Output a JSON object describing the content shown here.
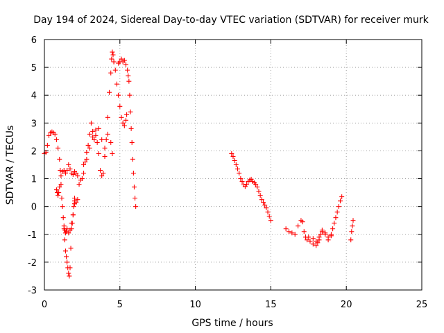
{
  "chart_data": {
    "type": "scatter",
    "title": "Day 194 of 2024, Sidereal Day-to-day VTEC variation (SDTVAR) for receiver murk",
    "xlabel": "GPS time / hours",
    "ylabel": "SDTVAR / TECUs",
    "xlim": [
      0,
      25
    ],
    "ylim": [
      -3,
      6
    ],
    "xticks": [
      0,
      5,
      10,
      15,
      20,
      25
    ],
    "yticks": [
      -3,
      -2,
      -1,
      0,
      1,
      2,
      3,
      4,
      5,
      6
    ],
    "xtick_labels": [
      "0",
      "5",
      "10",
      "15",
      "20",
      "25"
    ],
    "ytick_labels": [
      "-3",
      "-2",
      "-1",
      "0",
      "1",
      "2",
      "3",
      "4",
      "5",
      "6"
    ],
    "grid": true,
    "marker": "plus",
    "color": "#ff0000",
    "series": [
      {
        "name": "arc-early-oscillating",
        "x": [
          0.0,
          0.1,
          0.2,
          0.3,
          0.4,
          0.5,
          0.6,
          0.7,
          0.8,
          0.9,
          1.0,
          1.05,
          1.1,
          1.15,
          1.2,
          1.25,
          1.3,
          1.35,
          1.4,
          1.45,
          1.5,
          1.55,
          1.6,
          1.65,
          1.7,
          1.75,
          1.8,
          1.85,
          1.9,
          1.95,
          2.0
        ],
        "y": [
          1.9,
          1.95,
          2.2,
          2.55,
          2.65,
          2.68,
          2.65,
          2.6,
          2.4,
          2.1,
          1.7,
          1.3,
          0.8,
          0.3,
          0.0,
          -0.4,
          -0.8,
          -1.2,
          -1.6,
          -1.8,
          -2.0,
          -2.2,
          -2.4,
          -2.5,
          -2.2,
          -1.5,
          -0.8,
          -0.6,
          -0.3,
          0.0,
          0.2
        ]
      },
      {
        "name": "arc-upper-branch",
        "x": [
          0.8,
          0.85,
          0.9,
          0.95,
          1.0,
          1.1,
          1.2,
          1.3,
          1.4,
          1.5,
          1.6,
          1.7,
          1.8,
          1.9,
          2.0,
          2.1,
          2.2
        ],
        "y": [
          0.6,
          0.5,
          0.4,
          0.5,
          0.7,
          1.1,
          1.25,
          1.3,
          1.2,
          1.3,
          1.5,
          1.35,
          1.2,
          1.15,
          1.25,
          1.2,
          1.1
        ]
      },
      {
        "name": "arc-lower-branch",
        "x": [
          1.3,
          1.35,
          1.4,
          1.45,
          1.5,
          1.6,
          1.7,
          1.8,
          1.9,
          2.0
        ],
        "y": [
          -0.7,
          -0.85,
          -0.95,
          -0.9,
          -0.8,
          -0.95,
          -0.85,
          -0.6,
          -0.3,
          0.1
        ]
      },
      {
        "name": "arc-rising-peak",
        "x": [
          2.0,
          2.1,
          2.2,
          2.3,
          2.4,
          2.5,
          2.6,
          2.7,
          2.8,
          2.9,
          3.0,
          3.1,
          3.2,
          3.3,
          3.4,
          3.5,
          3.6,
          3.7,
          3.8,
          3.9,
          4.0,
          4.1,
          4.2,
          4.3,
          4.4,
          4.45,
          4.5,
          4.55,
          4.6
        ],
        "y": [
          0.3,
          0.15,
          0.25,
          0.8,
          0.95,
          1.0,
          1.2,
          1.6,
          1.95,
          2.2,
          2.6,
          3.0,
          2.7,
          2.4,
          2.55,
          2.3,
          1.9,
          1.3,
          1.1,
          1.2,
          1.8,
          2.4,
          3.2,
          4.1,
          4.8,
          5.3,
          5.55,
          5.45,
          5.2
        ]
      },
      {
        "name": "arc-mid-dense",
        "x": [
          2.6,
          2.8,
          3.0,
          3.2,
          3.4,
          3.6,
          3.8,
          4.0,
          4.2,
          4.4,
          4.5
        ],
        "y": [
          1.5,
          1.7,
          2.1,
          2.5,
          2.75,
          2.8,
          2.4,
          2.1,
          2.6,
          2.3,
          1.9
        ]
      },
      {
        "name": "arc-second-peak",
        "x": [
          4.6,
          4.7,
          4.8,
          4.9,
          5.0,
          5.1,
          5.2,
          5.3,
          5.4,
          5.45
        ],
        "y": [
          5.2,
          4.9,
          4.4,
          4.0,
          3.6,
          3.2,
          3.0,
          2.9,
          3.1,
          3.3
        ]
      },
      {
        "name": "arc-second-plateau",
        "x": [
          4.9,
          5.0,
          5.1,
          5.2,
          5.3,
          5.4,
          5.5,
          5.55,
          5.6,
          5.65,
          5.7,
          5.75,
          5.8,
          5.85,
          5.9,
          5.95,
          6.0,
          6.05
        ],
        "y": [
          5.15,
          5.2,
          5.3,
          5.2,
          5.25,
          5.1,
          4.9,
          4.7,
          4.5,
          4.0,
          3.4,
          2.8,
          2.3,
          1.7,
          1.2,
          0.7,
          0.3,
          0.0
        ]
      },
      {
        "name": "arc-midday",
        "x": [
          12.4,
          12.5,
          12.6,
          12.7,
          12.8,
          12.9,
          13.0,
          13.1,
          13.2,
          13.3,
          13.4,
          13.5,
          13.6,
          13.7,
          13.8,
          13.9,
          14.0,
          14.1,
          14.2,
          14.3,
          14.4,
          14.5,
          14.6,
          14.7,
          14.8,
          14.9,
          15.0
        ],
        "y": [
          1.9,
          1.8,
          1.65,
          1.5,
          1.35,
          1.2,
          1.0,
          0.9,
          0.78,
          0.72,
          0.8,
          0.9,
          0.95,
          0.98,
          0.9,
          0.85,
          0.8,
          0.7,
          0.55,
          0.4,
          0.25,
          0.15,
          0.05,
          -0.05,
          -0.2,
          -0.35,
          -0.5
        ]
      },
      {
        "name": "arc-evening",
        "x": [
          16.0,
          16.2,
          16.4,
          16.6,
          16.8,
          17.0,
          17.1,
          17.2,
          17.3,
          17.4,
          17.5,
          17.6,
          17.8,
          18.0,
          18.2,
          18.4,
          18.6,
          18.8,
          19.0,
          19.1,
          19.2,
          19.3,
          19.4,
          19.5,
          19.6,
          19.7
        ],
        "y": [
          -0.8,
          -0.9,
          -0.95,
          -1.0,
          -0.7,
          -0.5,
          -0.55,
          -0.9,
          -1.1,
          -1.2,
          -1.1,
          -1.25,
          -1.35,
          -1.4,
          -1.2,
          -0.9,
          -0.95,
          -1.1,
          -1.05,
          -0.8,
          -0.6,
          -0.4,
          -0.2,
          0.0,
          0.2,
          0.35
        ]
      },
      {
        "name": "arc-evening-lower",
        "x": [
          17.8,
          18.0,
          18.1,
          18.2,
          18.3,
          18.4,
          18.6,
          18.8,
          19.0
        ],
        "y": [
          -1.15,
          -1.25,
          -1.3,
          -1.1,
          -1.0,
          -0.85,
          -1.0,
          -1.2,
          -1.0
        ]
      },
      {
        "name": "arc-late",
        "x": [
          20.3,
          20.35,
          20.4,
          20.45
        ],
        "y": [
          -1.2,
          -0.9,
          -0.7,
          -0.5
        ]
      }
    ]
  }
}
